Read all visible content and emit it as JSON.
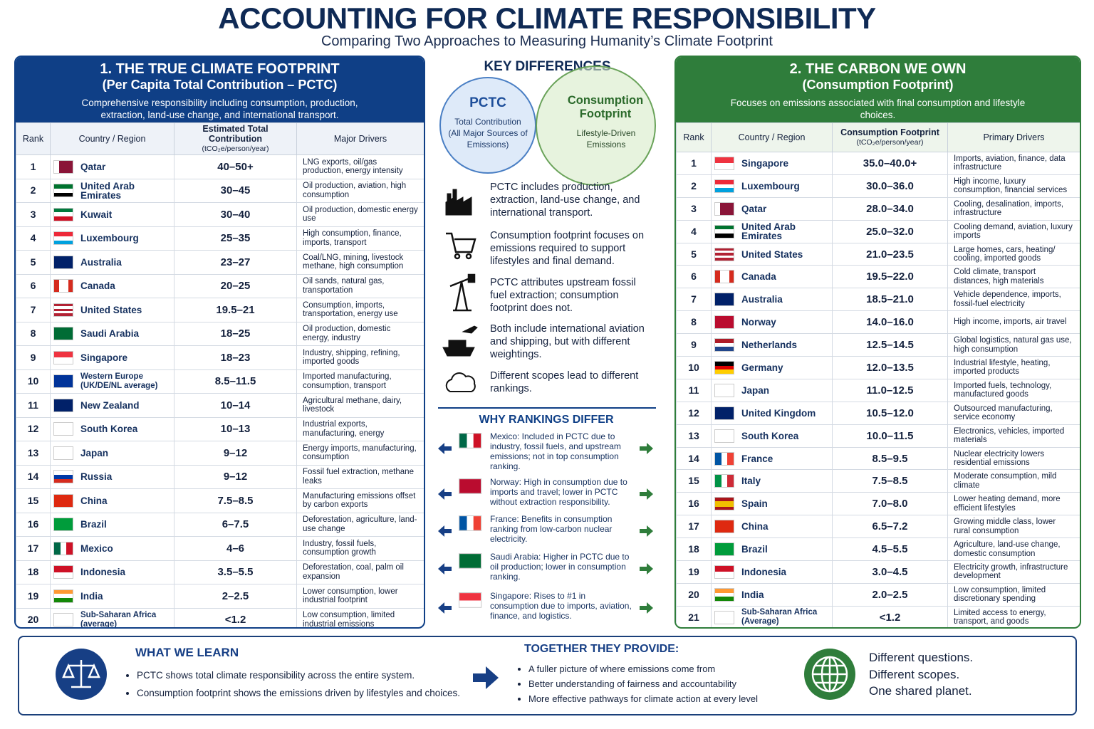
{
  "header": {
    "title": "ACCOUNTING FOR CLIMATE RESPONSIBILITY",
    "subtitle": "Comparing Two Approaches to Measuring Humanity’s Climate Footprint"
  },
  "left_panel": {
    "title": "1. THE TRUE CLIMATE FOOTPRINT",
    "subtitle": "(Per Capita Total Contribution – PCTC)",
    "description": "Comprehensive responsibility including consumption, production, extraction, land-use change, and international transport.",
    "columns": [
      {
        "label": "Rank"
      },
      {
        "label": "Country / Region"
      },
      {
        "label": "Estimated Total Contribution",
        "unit": "(tCO₂e/person/year)"
      },
      {
        "label": "Major Drivers"
      }
    ],
    "rows": [
      {
        "rank": 1,
        "country": "Qatar",
        "value": "40–50+",
        "drivers": "LNG exports, oil/gas production, energy intensity"
      },
      {
        "rank": 2,
        "country": "United Arab Emirates",
        "value": "30–45",
        "drivers": "Oil production, aviation, high consumption"
      },
      {
        "rank": 3,
        "country": "Kuwait",
        "value": "30–40",
        "drivers": "Oil production, domestic energy use"
      },
      {
        "rank": 4,
        "country": "Luxembourg",
        "value": "25–35",
        "drivers": "High consumption, finance, imports, transport"
      },
      {
        "rank": 5,
        "country": "Australia",
        "value": "23–27",
        "drivers": "Coal/LNG, mining, livestock methane, high consumption"
      },
      {
        "rank": 6,
        "country": "Canada",
        "value": "20–25",
        "drivers": "Oil sands, natural gas, transportation"
      },
      {
        "rank": 7,
        "country": "United States",
        "value": "19.5–21",
        "drivers": "Consumption, imports, transportation, energy use"
      },
      {
        "rank": 8,
        "country": "Saudi Arabia",
        "value": "18–25",
        "drivers": "Oil production, domestic energy, industry"
      },
      {
        "rank": 9,
        "country": "Singapore",
        "value": "18–23",
        "drivers": "Industry, shipping, refining, imported goods"
      },
      {
        "rank": 10,
        "country": "Western Europe (UK/DE/NL average)",
        "value": "8.5–11.5",
        "drivers": "Imported manufacturing, consumption, transport"
      },
      {
        "rank": 11,
        "country": "New Zealand",
        "value": "10–14",
        "drivers": "Agricultural methane, dairy, livestock"
      },
      {
        "rank": 12,
        "country": "South Korea",
        "value": "10–13",
        "drivers": "Industrial exports, manufacturing, energy"
      },
      {
        "rank": 13,
        "country": "Japan",
        "value": "9–12",
        "drivers": "Energy imports, manufacturing, consumption"
      },
      {
        "rank": 14,
        "country": "Russia",
        "value": "9–12",
        "drivers": "Fossil fuel extraction, methane leaks"
      },
      {
        "rank": 15,
        "country": "China",
        "value": "7.5–8.5",
        "drivers": "Manufacturing emissions offset by carbon exports"
      },
      {
        "rank": 16,
        "country": "Brazil",
        "value": "6–7.5",
        "drivers": "Deforestation, agriculture, land-use change"
      },
      {
        "rank": 17,
        "country": "Mexico",
        "value": "4–6",
        "drivers": "Industry, fossil fuels, consumption growth"
      },
      {
        "rank": 18,
        "country": "Indonesia",
        "value": "3.5–5.5",
        "drivers": "Deforestation, coal, palm oil expansion"
      },
      {
        "rank": 19,
        "country": "India",
        "value": "2–2.5",
        "drivers": "Lower consumption, lower industrial footprint"
      },
      {
        "rank": 20,
        "country": "Sub-Saharan Africa (average)",
        "value": "<1.2",
        "drivers": "Low consumption, limited industrial emissions"
      }
    ]
  },
  "right_panel": {
    "title": "2. THE CARBON WE OWN",
    "subtitle": "(Consumption Footprint)",
    "description": "Focuses on emissions associated with final consumption and lifestyle choices.",
    "columns": [
      {
        "label": "Rank"
      },
      {
        "label": "Country / Region"
      },
      {
        "label": "Consumption Footprint",
        "unit": "(tCO₂e/person/year)"
      },
      {
        "label": "Primary Drivers"
      }
    ],
    "rows": [
      {
        "rank": 1,
        "country": "Singapore",
        "value": "35.0–40.0+",
        "drivers": "Imports, aviation, finance, data infrastructure"
      },
      {
        "rank": 2,
        "country": "Luxembourg",
        "value": "30.0–36.0",
        "drivers": "High income, luxury consumption, financial services"
      },
      {
        "rank": 3,
        "country": "Qatar",
        "value": "28.0–34.0",
        "drivers": "Cooling, desalination, imports, infrastructure"
      },
      {
        "rank": 4,
        "country": "United Arab Emirates",
        "value": "25.0–32.0",
        "drivers": "Cooling demand, aviation, luxury imports"
      },
      {
        "rank": 5,
        "country": "United States",
        "value": "21.0–23.5",
        "drivers": "Large homes, cars, heating/ cooling, imported goods"
      },
      {
        "rank": 6,
        "country": "Canada",
        "value": "19.5–22.0",
        "drivers": "Cold climate, transport distances, high materials"
      },
      {
        "rank": 7,
        "country": "Australia",
        "value": "18.5–21.0",
        "drivers": "Vehicle dependence, imports, fossil-fuel electricity"
      },
      {
        "rank": 8,
        "country": "Norway",
        "value": "14.0–16.0",
        "drivers": "High income, imports, air travel"
      },
      {
        "rank": 9,
        "country": "Netherlands",
        "value": "12.5–14.5",
        "drivers": "Global logistics, natural gas use, high consumption"
      },
      {
        "rank": 10,
        "country": "Germany",
        "value": "12.0–13.5",
        "drivers": "Industrial lifestyle, heating, imported products"
      },
      {
        "rank": 11,
        "country": "Japan",
        "value": "11.0–12.5",
        "drivers": "Imported fuels, technology, manufactured goods"
      },
      {
        "rank": 12,
        "country": "United Kingdom",
        "value": "10.5–12.0",
        "drivers": "Outsourced manufacturing, service economy"
      },
      {
        "rank": 13,
        "country": "South Korea",
        "value": "10.0–11.5",
        "drivers": "Electronics, vehicles, imported materials"
      },
      {
        "rank": 14,
        "country": "France",
        "value": "8.5–9.5",
        "drivers": "Nuclear electricity lowers residential emissions"
      },
      {
        "rank": 15,
        "country": "Italy",
        "value": "7.5–8.5",
        "drivers": "Moderate consumption, mild climate"
      },
      {
        "rank": 16,
        "country": "Spain",
        "value": "7.0–8.0",
        "drivers": "Lower heating demand, more efficient lifestyles"
      },
      {
        "rank": 17,
        "country": "China",
        "value": "6.5–7.2",
        "drivers": "Growing middle class, lower rural consumption"
      },
      {
        "rank": 18,
        "country": "Brazil",
        "value": "4.5–5.5",
        "drivers": "Agriculture, land-use change, domestic consumption"
      },
      {
        "rank": 19,
        "country": "Indonesia",
        "value": "3.0–4.5",
        "drivers": "Electricity growth, infrastructure development"
      },
      {
        "rank": 20,
        "country": "India",
        "value": "2.0–2.5",
        "drivers": "Low consumption, limited discretionary spending"
      },
      {
        "rank": 21,
        "country": "Sub-Saharan Africa (Average)",
        "value": "<1.2",
        "drivers": "Limited access to energy, transport, and goods"
      }
    ]
  },
  "key_differences": {
    "title": "KEY DIFFERENCES",
    "venn": {
      "left_title": "PCTC",
      "left_text": "Total Contribution (All Major Sources of Emissions)",
      "right_title": "Consumption Footprint",
      "right_text": "Lifestyle-Driven Emissions"
    },
    "items": [
      "PCTC includes production, extraction, land-use change, and international transport.",
      "Consumption footprint focuses on emissions required to support lifestyles and final demand.",
      "PCTC attributes upstream fossil fuel extraction; consumption footprint does not.",
      "Both include international aviation and shipping, but with different weightings.",
      "Different scopes lead to different rankings."
    ]
  },
  "why_rankings_differ": {
    "title": "WHY RANKINGS DIFFER",
    "items": [
      "Mexico: Included in PCTC due to industry, fossil fuels, and upstream emissions; not in top consumption ranking.",
      "Norway: High in consumption due to imports and travel; lower in PCTC without extraction responsibility.",
      "France: Benefits in consumption ranking from low-carbon nuclear electricity.",
      "Saudi Arabia: Higher in PCTC due to oil production; lower in consumption ranking.",
      "Singapore: Rises to #1 in consumption due to imports, aviation, finance, and logistics."
    ]
  },
  "footer": {
    "what_we_learn": {
      "title": "WHAT WE LEARN",
      "bullets": [
        "PCTC shows total climate responsibility across the entire system.",
        "Consumption footprint shows the emissions driven by lifestyles and choices."
      ]
    },
    "together": {
      "title": "TOGETHER THEY PROVIDE:",
      "bullets": [
        "A fuller picture of where emissions come from",
        "Better understanding of fairness and accountability",
        "More effective pathways for climate action at every level"
      ]
    },
    "closing": [
      "Different questions.",
      "Different scopes.",
      "One shared planet."
    ]
  }
}
